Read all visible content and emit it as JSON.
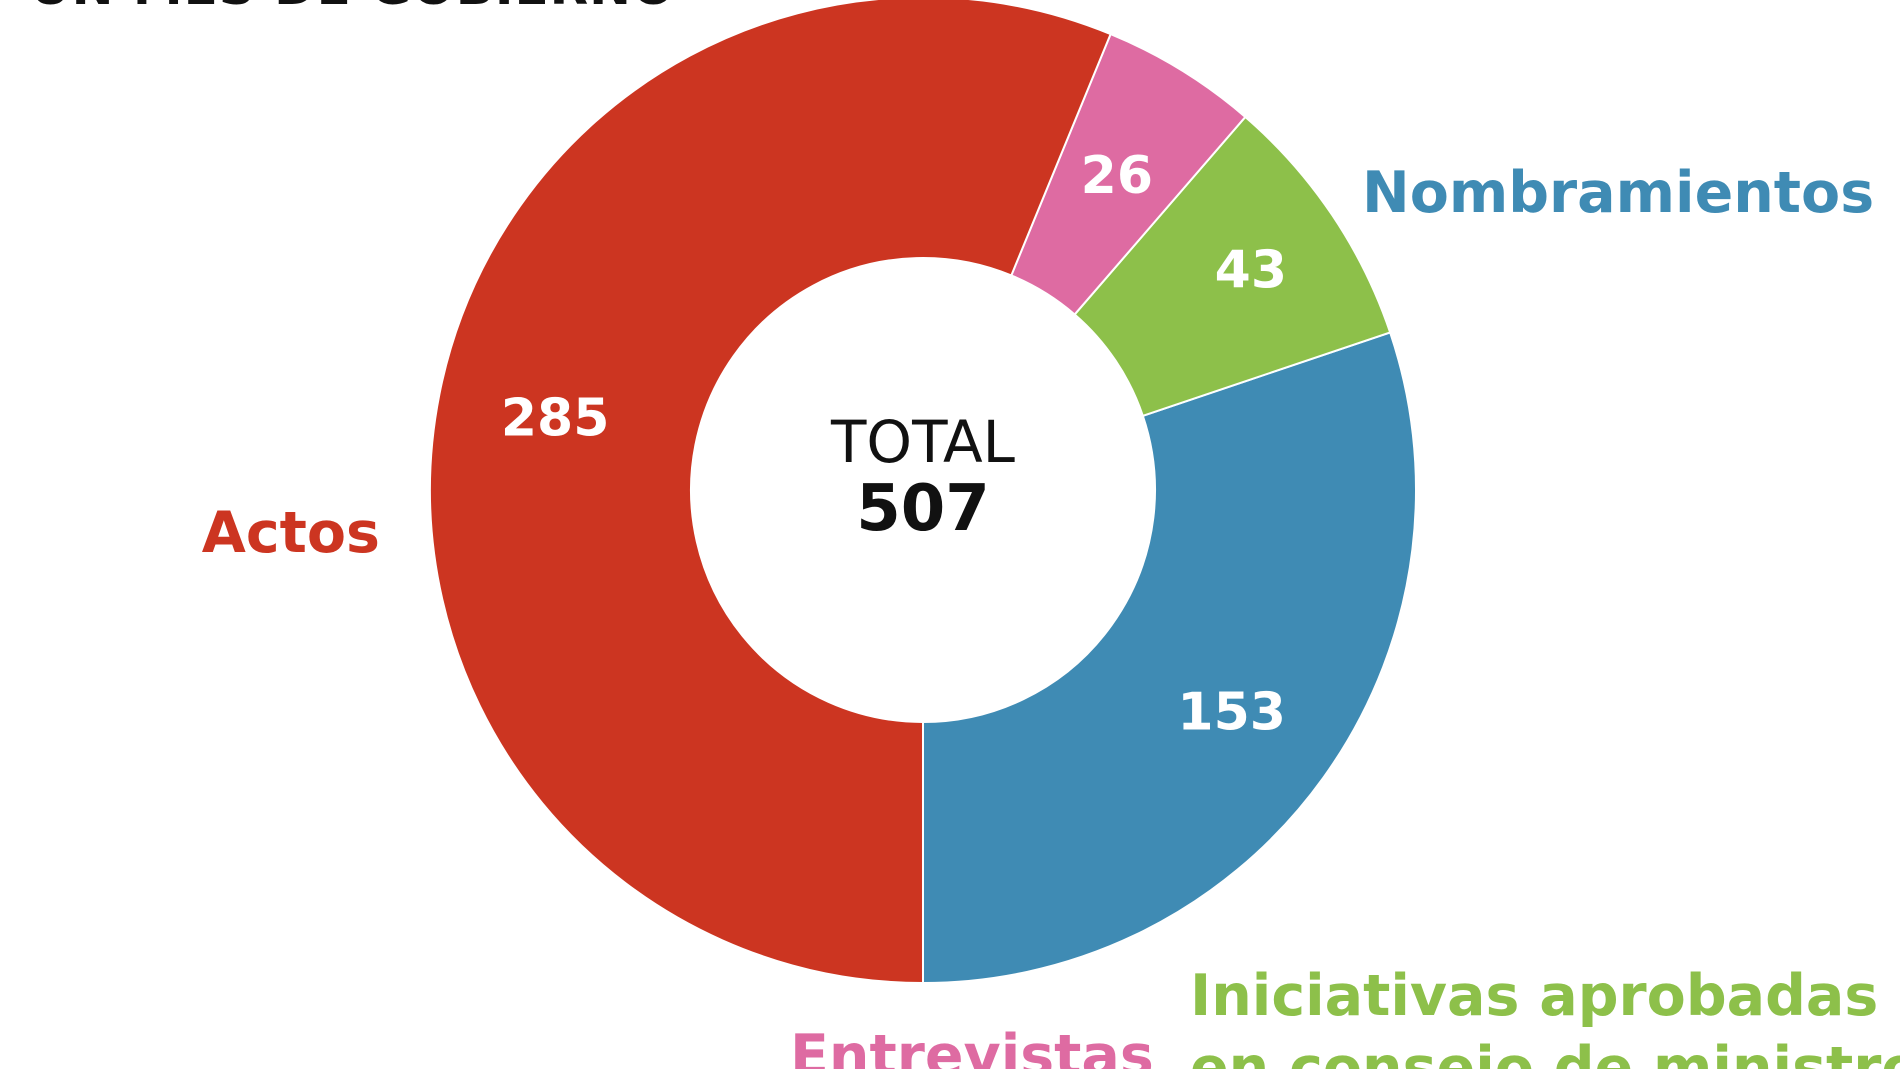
{
  "chart_data": {
    "type": "pie",
    "title": "UN MES DE GOBIERNO",
    "center_label": "TOTAL",
    "center_value": "507",
    "slices": [
      {
        "label": "Nombramientos",
        "value": 153,
        "value_label": "153",
        "color": "#3f8bb4",
        "label_lines": [
          "Nombramientos"
        ]
      },
      {
        "label": "Iniciativas aprobadas en consejo de ministros",
        "value": 43,
        "value_label": "43",
        "color": "#8dc04a",
        "label_lines": [
          "Iniciativas aprobadas",
          "en consejo de ministros"
        ]
      },
      {
        "label": "Entrevistas",
        "value": 26,
        "value_label": "26",
        "color": "#de6ba2",
        "label_lines": [
          "Entrevistas"
        ]
      },
      {
        "label": "Actos",
        "value": 285,
        "value_label": "285",
        "color": "#cc3521",
        "label_lines": [
          "Actos"
        ]
      }
    ]
  }
}
